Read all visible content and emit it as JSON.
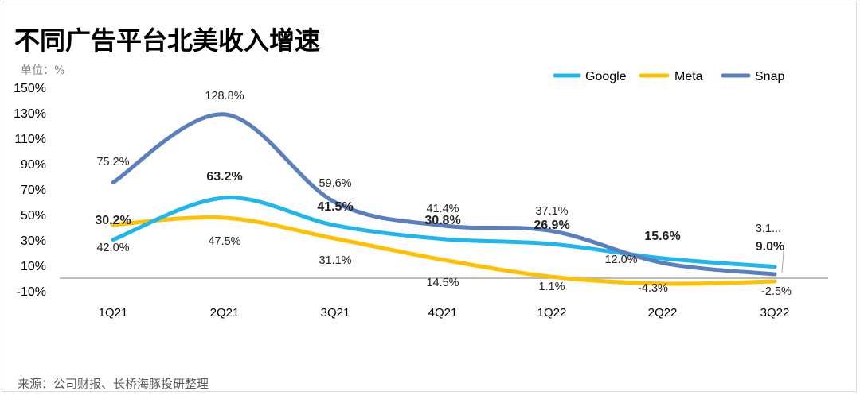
{
  "title": "不同广告平台北美收入增速",
  "unit_label": "单位：%",
  "source": "来源：公司财报、长桥海豚投研整理",
  "chart_data": {
    "type": "line",
    "title": "不同广告平台北美收入增速",
    "xlabel": "",
    "ylabel": "单位：%",
    "categories": [
      "1Q21",
      "2Q21",
      "3Q21",
      "4Q21",
      "1Q22",
      "2Q22",
      "3Q22"
    ],
    "ylim": [
      -10,
      150
    ],
    "yticks": [
      "150%",
      "130%",
      "110%",
      "90%",
      "70%",
      "50%",
      "30%",
      "10%",
      "-10%"
    ],
    "ytick_values": [
      150,
      130,
      110,
      90,
      70,
      50,
      30,
      10,
      -10
    ],
    "grid": false,
    "smooth": true,
    "legend": "top-right",
    "series": [
      {
        "name": "Google",
        "color": "#1FB6EE",
        "values": [
          30.2,
          63.2,
          41.5,
          30.8,
          26.9,
          15.6,
          9.0
        ],
        "labels": [
          "30.2%",
          "63.2%",
          "41.5%",
          "30.8%",
          "26.9%",
          "15.6%",
          "9.0%"
        ],
        "bold": true
      },
      {
        "name": "Meta",
        "color": "#FFC000",
        "values": [
          42.0,
          47.5,
          31.1,
          14.5,
          1.1,
          -4.3,
          -2.5
        ],
        "labels": [
          "42.0%",
          "47.5%",
          "31.1%",
          "14.5%",
          "1.1%",
          "-4.3%",
          "-2.5%"
        ],
        "bold": false
      },
      {
        "name": "Snap",
        "color": "#5A7FBF",
        "values": [
          75.2,
          128.8,
          59.6,
          41.4,
          37.1,
          12.0,
          3.1
        ],
        "labels": [
          "75.2%",
          "128.8%",
          "59.6%",
          "41.4%",
          "37.1%",
          "12.0%",
          "3.1..."
        ],
        "bold": false
      }
    ]
  }
}
